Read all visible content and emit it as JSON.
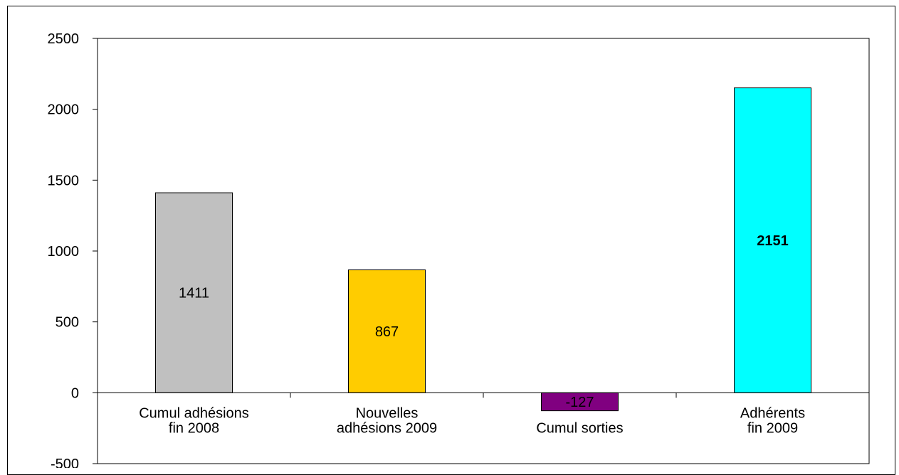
{
  "chart_data": {
    "type": "bar",
    "categories": [
      [
        "Cumul adhésions",
        "fin 2008"
      ],
      [
        "Nouvelles",
        "adhésions 2009"
      ],
      [
        "",
        "Cumul sorties"
      ],
      [
        "Adhérents",
        "fin 2009"
      ]
    ],
    "values": [
      1411,
      867,
      -127,
      2151
    ],
    "data_labels": [
      "1411",
      "867",
      "-127",
      "2151"
    ],
    "bold_labels": [
      false,
      false,
      false,
      true
    ],
    "colors": [
      "#c0c0c0",
      "#ffcc00",
      "#800080",
      "#00ffff"
    ],
    "ylim": [
      -500,
      2500
    ],
    "yticks": [
      -500,
      0,
      500,
      1000,
      1500,
      2000,
      2500
    ],
    "grid": false,
    "title": "",
    "xlabel": "",
    "ylabel": ""
  }
}
